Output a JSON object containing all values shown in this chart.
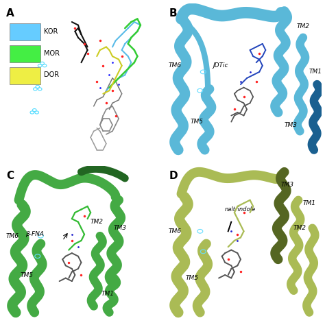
{
  "background_color": "#ffffff",
  "figsize": [
    4.74,
    4.74
  ],
  "dpi": 100,
  "panel_A": {
    "label": "A",
    "legend": [
      {
        "label": "KOR",
        "color": "#66ccff"
      },
      {
        "label": "MOR",
        "color": "#44ee44"
      },
      {
        "label": "DOR",
        "color": "#eeee44"
      }
    ]
  },
  "panel_B": {
    "label": "B",
    "ribbon_color": "#5ab8d8",
    "ribbon_dark": "#1a6090",
    "ligand_label": "JDTic"
  },
  "panel_C": {
    "label": "C",
    "ribbon_color": "#44aa44",
    "ribbon_dark": "#226622"
  },
  "panel_D": {
    "label": "D",
    "ribbon_color": "#aabb55",
    "ribbon_dark": "#556622"
  }
}
